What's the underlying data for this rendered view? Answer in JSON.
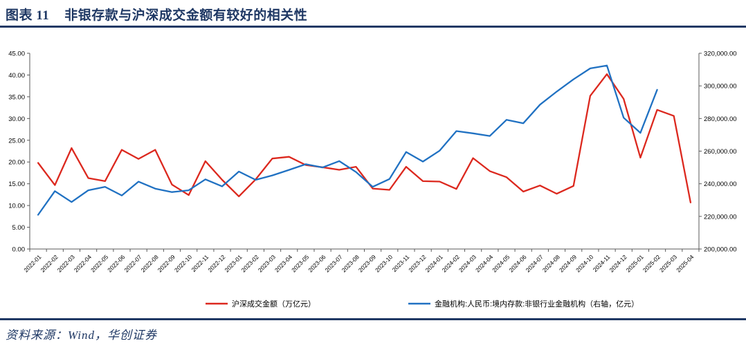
{
  "header": {
    "figure_label": "图表 11",
    "title": "非银存款与沪深成交金额有较好的相关性"
  },
  "footer": {
    "source": "资料来源：Wind，华创证券"
  },
  "colors": {
    "accent_navy": "#1f3864",
    "red_series": "#dc281e",
    "blue_series": "#2071c2",
    "axis_line": "#595959",
    "axis_text": "#000000"
  },
  "chart_data": {
    "type": "line",
    "title": "",
    "grid": false,
    "legend_position": "bottom",
    "categories": [
      "2022-01",
      "2022-02",
      "2022-03",
      "2022-04",
      "2022-05",
      "2022-06",
      "2022-07",
      "2022-08",
      "2022-09",
      "2022-10",
      "2022-11",
      "2022-12",
      "2023-01",
      "2023-02",
      "2023-03",
      "2023-04",
      "2023-05",
      "2023-06",
      "2023-07",
      "2023-08",
      "2023-09",
      "2023-10",
      "2023-11",
      "2023-12",
      "2024-01",
      "2024-02",
      "2024-03",
      "2024-04",
      "2024-05",
      "2024-06",
      "2024-07",
      "2024-08",
      "2024-09",
      "2024-10",
      "2024-11",
      "2024-12",
      "2025-01",
      "2025-02",
      "2025-03",
      "2025-04"
    ],
    "left_axis": {
      "min": 0,
      "max": 45,
      "step": 5
    },
    "right_axis": {
      "min": 200000,
      "max": 320000,
      "step": 20000
    },
    "series": [
      {
        "name": "沪深成交金额（万亿元）",
        "axis": "left",
        "color_key": "red_series",
        "values": [
          19.8,
          14.7,
          23.2,
          16.3,
          15.6,
          22.8,
          20.7,
          22.8,
          14.8,
          12.4,
          20.2,
          15.9,
          12.1,
          16.0,
          20.8,
          21.2,
          19.3,
          18.8,
          18.2,
          18.9,
          13.9,
          13.6,
          18.9,
          15.6,
          15.5,
          13.8,
          20.9,
          17.9,
          16.5,
          13.2,
          14.6,
          12.7,
          14.5,
          35.2,
          40.2,
          34.5,
          21.0,
          32.0,
          30.6,
          10.7
        ]
      },
      {
        "name": "金融机构:人民币:境内存款:非银行业金融机构（右轴，亿元）",
        "axis": "right",
        "color_key": "blue_series",
        "values": [
          221000,
          235500,
          228800,
          236000,
          238100,
          232800,
          241300,
          237000,
          234900,
          236000,
          242700,
          238400,
          247500,
          242400,
          245100,
          248500,
          252000,
          250000,
          253900,
          247200,
          238100,
          242900,
          259500,
          253600,
          260300,
          272300,
          270900,
          269300,
          279200,
          277100,
          288500,
          296500,
          304000,
          310700,
          312500,
          280500,
          271200,
          297600,
          null,
          null
        ]
      }
    ]
  }
}
